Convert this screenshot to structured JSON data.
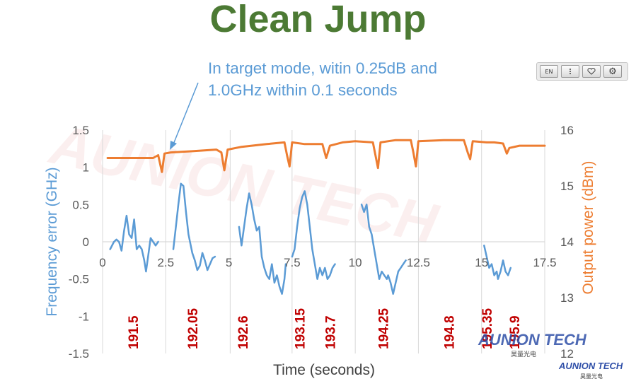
{
  "title": "Clean Jump",
  "annotation": [
    "In target mode, witin 0.25dB and",
    "1.0GHz within 0.1 seconds"
  ],
  "toolbar": {
    "lang_label": "EN",
    "buttons": [
      "vertical-dots-icon",
      "heart-icon",
      "gear-icon"
    ]
  },
  "brand": {
    "name": "AUNION TECH",
    "subtitle": "昊量光电"
  },
  "colors": {
    "frequency": "#5b9bd5",
    "power": "#ed7d31",
    "title": "#4c7a34",
    "channel_labels": "#c00000",
    "arrow": "#5b9bd5"
  },
  "chart_data": {
    "type": "line",
    "title": "",
    "xlabel": "Time (seconds)",
    "ylabel_left": "Frequency error (GHz)",
    "ylabel_right": "Output power (dBm)",
    "xlim": [
      0,
      17.5
    ],
    "ylim_left": [
      -1.5,
      1.5
    ],
    "ylim_right": [
      12,
      16
    ],
    "x_ticks": [
      "0",
      "2.5",
      "5",
      "7.5",
      "10",
      "12.5",
      "15",
      "17.5"
    ],
    "y_ticks_left": [
      "-1.5",
      "-1",
      "-0.5",
      "0",
      "0.5",
      "1",
      "1.5"
    ],
    "y_ticks_right": [
      "12",
      "13",
      "14",
      "15",
      "16"
    ],
    "grid": "vertical lines at channel jumps",
    "channel_jumps": [
      2.5,
      5.05,
      7.5,
      10.0,
      12.5,
      15.0,
      17.5
    ],
    "channel_labels": [
      {
        "x": 1.2,
        "label": "191.5"
      },
      {
        "x": 3.55,
        "label": "192.05"
      },
      {
        "x": 5.55,
        "label": "192.6"
      },
      {
        "x": 7.8,
        "label": "193.15"
      },
      {
        "x": 9.0,
        "label": "193.7"
      },
      {
        "x": 11.1,
        "label": "194.25"
      },
      {
        "x": 13.7,
        "label": "194.8"
      },
      {
        "x": 15.2,
        "label": "195.35"
      },
      {
        "x": 16.3,
        "label": "195.9"
      }
    ],
    "series": [
      {
        "name": "Frequency error",
        "axis": "left",
        "segments": [
          [
            [
              0.3,
              -0.1
            ],
            [
              0.45,
              0.0
            ],
            [
              0.55,
              0.03
            ],
            [
              0.65,
              0.0
            ],
            [
              0.75,
              -0.12
            ],
            [
              0.85,
              0.15
            ],
            [
              0.95,
              0.35
            ],
            [
              1.05,
              0.1
            ],
            [
              1.15,
              0.05
            ],
            [
              1.25,
              0.3
            ],
            [
              1.35,
              -0.1
            ],
            [
              1.45,
              -0.05
            ],
            [
              1.55,
              -0.1
            ],
            [
              1.65,
              -0.25
            ],
            [
              1.72,
              -0.4
            ],
            [
              1.8,
              -0.2
            ],
            [
              1.9,
              0.05
            ],
            [
              2.0,
              0.0
            ],
            [
              2.1,
              -0.05
            ],
            [
              2.2,
              0.0
            ]
          ],
          [
            [
              2.8,
              -0.1
            ],
            [
              2.9,
              0.2
            ],
            [
              3.0,
              0.5
            ],
            [
              3.1,
              0.78
            ],
            [
              3.2,
              0.75
            ],
            [
              3.3,
              0.4
            ],
            [
              3.4,
              0.1
            ],
            [
              3.55,
              -0.15
            ],
            [
              3.65,
              -0.25
            ],
            [
              3.75,
              -0.38
            ],
            [
              3.85,
              -0.32
            ],
            [
              3.95,
              -0.15
            ],
            [
              4.05,
              -0.25
            ],
            [
              4.15,
              -0.38
            ],
            [
              4.25,
              -0.3
            ],
            [
              4.35,
              -0.22
            ],
            [
              4.45,
              -0.2
            ]
          ],
          [
            [
              5.4,
              0.2
            ],
            [
              5.5,
              -0.05
            ],
            [
              5.6,
              0.2
            ],
            [
              5.7,
              0.45
            ],
            [
              5.8,
              0.65
            ],
            [
              5.9,
              0.5
            ],
            [
              6.0,
              0.3
            ],
            [
              6.1,
              0.15
            ],
            [
              6.2,
              0.2
            ],
            [
              6.3,
              -0.2
            ],
            [
              6.4,
              -0.35
            ],
            [
              6.5,
              -0.45
            ],
            [
              6.6,
              -0.5
            ],
            [
              6.7,
              -0.3
            ],
            [
              6.8,
              -0.55
            ],
            [
              6.9,
              -0.45
            ],
            [
              7.0,
              -0.6
            ],
            [
              7.1,
              -0.7
            ],
            [
              7.2,
              -0.5
            ],
            [
              7.25,
              -0.3
            ]
          ],
          [
            [
              7.5,
              -0.2
            ],
            [
              7.6,
              -0.1
            ],
            [
              7.7,
              0.2
            ],
            [
              7.8,
              0.45
            ],
            [
              7.9,
              0.6
            ],
            [
              8.0,
              0.68
            ],
            [
              8.1,
              0.5
            ],
            [
              8.2,
              0.2
            ],
            [
              8.3,
              -0.1
            ],
            [
              8.4,
              -0.3
            ],
            [
              8.5,
              -0.5
            ],
            [
              8.6,
              -0.35
            ],
            [
              8.7,
              -0.45
            ],
            [
              8.8,
              -0.35
            ],
            [
              8.9,
              -0.5
            ],
            [
              9.0,
              -0.45
            ],
            [
              9.1,
              -0.35
            ],
            [
              9.2,
              -0.3
            ]
          ],
          [
            [
              10.25,
              0.5
            ],
            [
              10.35,
              0.4
            ],
            [
              10.45,
              0.5
            ],
            [
              10.55,
              0.2
            ],
            [
              10.65,
              0.1
            ],
            [
              10.75,
              -0.1
            ],
            [
              10.85,
              -0.3
            ],
            [
              10.95,
              -0.5
            ],
            [
              11.05,
              -0.4
            ],
            [
              11.15,
              -0.45
            ],
            [
              11.25,
              -0.5
            ],
            [
              11.3,
              -0.45
            ],
            [
              11.4,
              -0.55
            ],
            [
              11.5,
              -0.7
            ],
            [
              11.6,
              -0.55
            ],
            [
              11.7,
              -0.4
            ],
            [
              11.8,
              -0.35
            ],
            [
              11.9,
              -0.3
            ],
            [
              12.0,
              -0.25
            ]
          ],
          [
            [
              15.1,
              -0.05
            ],
            [
              15.2,
              -0.2
            ],
            [
              15.3,
              -0.35
            ],
            [
              15.4,
              -0.3
            ],
            [
              15.5,
              -0.45
            ],
            [
              15.6,
              -0.4
            ],
            [
              15.65,
              -0.5
            ],
            [
              15.75,
              -0.4
            ],
            [
              15.85,
              -0.25
            ],
            [
              15.95,
              -0.4
            ],
            [
              16.05,
              -0.45
            ],
            [
              16.15,
              -0.35
            ]
          ]
        ]
      },
      {
        "name": "Output power",
        "axis": "right",
        "segments": [
          [
            [
              0.2,
              15.5
            ],
            [
              2.0,
              15.5
            ],
            [
              2.2,
              15.55
            ],
            [
              2.35,
              15.25
            ],
            [
              2.45,
              15.58
            ],
            [
              2.7,
              15.6
            ],
            [
              3.5,
              15.62
            ],
            [
              4.5,
              15.65
            ],
            [
              4.7,
              15.6
            ],
            [
              4.82,
              15.28
            ],
            [
              4.95,
              15.65
            ],
            [
              5.5,
              15.7
            ],
            [
              6.5,
              15.75
            ],
            [
              7.2,
              15.78
            ],
            [
              7.3,
              15.55
            ],
            [
              7.4,
              15.35
            ],
            [
              7.5,
              15.78
            ],
            [
              8.0,
              15.75
            ],
            [
              8.7,
              15.75
            ],
            [
              8.85,
              15.5
            ],
            [
              9.0,
              15.72
            ],
            [
              9.5,
              15.78
            ],
            [
              10.0,
              15.8
            ],
            [
              10.7,
              15.78
            ],
            [
              10.8,
              15.55
            ],
            [
              10.9,
              15.32
            ],
            [
              11.0,
              15.78
            ],
            [
              11.6,
              15.82
            ],
            [
              12.2,
              15.82
            ],
            [
              12.3,
              15.6
            ],
            [
              12.4,
              15.35
            ],
            [
              12.5,
              15.8
            ],
            [
              13.5,
              15.82
            ],
            [
              14.3,
              15.82
            ],
            [
              14.45,
              15.6
            ],
            [
              14.55,
              15.48
            ],
            [
              14.65,
              15.8
            ],
            [
              15.2,
              15.78
            ],
            [
              15.5,
              15.78
            ],
            [
              15.85,
              15.76
            ],
            [
              16.0,
              15.58
            ],
            [
              16.1,
              15.68
            ],
            [
              16.5,
              15.72
            ],
            [
              17.2,
              15.72
            ],
            [
              17.5,
              15.72
            ]
          ]
        ]
      }
    ]
  }
}
